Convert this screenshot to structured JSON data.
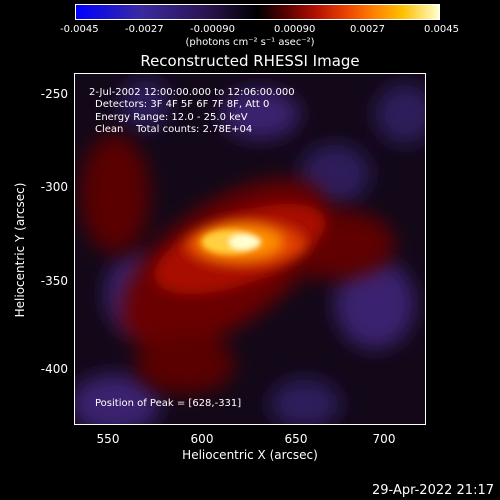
{
  "colorbar": {
    "ticks": [
      "-0.0045",
      "-0.0027",
      "-0.00090",
      "0.00090",
      "0.0027",
      "0.0045"
    ],
    "units": "(photons cm⁻² s⁻¹ asec⁻²)"
  },
  "title": "Reconstructed RHESSI Image",
  "info": {
    "time": "2-Jul-2002 12:00:00.000 to 12:06:00.000",
    "detectors": "Detectors: 3F 4F 5F 6F 7F 8F, Att 0",
    "energy": "Energy Range: 12.0 - 25.0 keV",
    "clean": "Clean    Total counts: 2.78E+04"
  },
  "peak_text": "Position of Peak = [628,-331]",
  "axes": {
    "xlabel": "Heliocentric X (arcsec)",
    "ylabel": "Heliocentric Y (arcsec)",
    "xticks": [
      "550",
      "600",
      "650",
      "700"
    ],
    "yticks": [
      "-250",
      "-300",
      "-350",
      "-400"
    ]
  },
  "timestamp": "29-Apr-2022 21:17",
  "colors": {
    "background": "#000000",
    "text": "#ffffff"
  }
}
